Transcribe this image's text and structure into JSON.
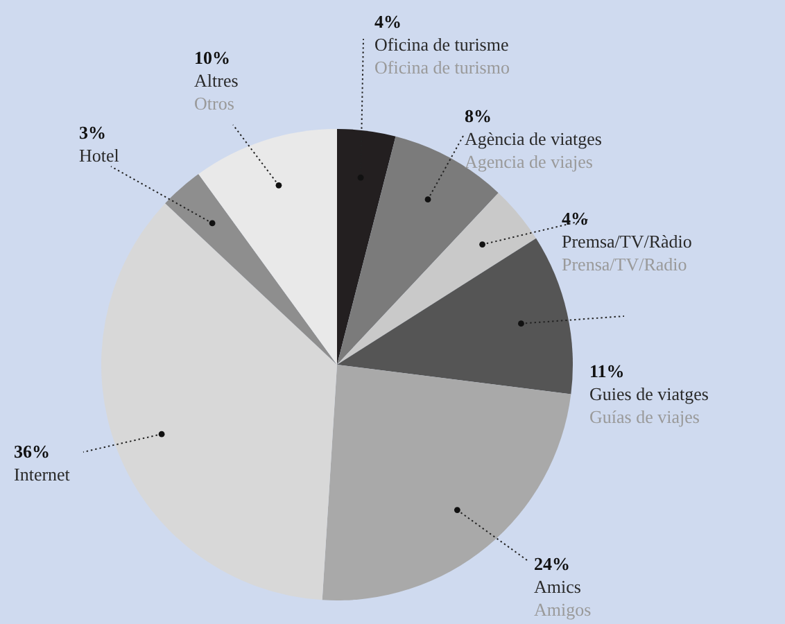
{
  "chart_data": {
    "type": "pie",
    "categories": [
      "Oficina de turisme\nOficina de turismo",
      "Agència de viatges\nAgencia de viajes",
      "Premsa/TV/Ràdio\nPrensa/TV/Radio",
      "Guies de viatges\nGuías de viajes",
      "Amics\nAmigos",
      "Internet",
      "Hotel",
      "Altres\nOtros"
    ],
    "values": [
      4,
      8,
      4,
      11,
      24,
      36,
      3,
      10
    ],
    "value_labels": [
      "4%",
      "8%",
      "4%",
      "11%",
      "24%",
      "36%",
      "3%",
      "10%"
    ],
    "colors": [
      "#231f20",
      "#7b7b7b",
      "#c9c9c9",
      "#555555",
      "#a9a9a9",
      "#d8d8d8",
      "#8e8e8e",
      "#e9e9e9"
    ]
  }
}
